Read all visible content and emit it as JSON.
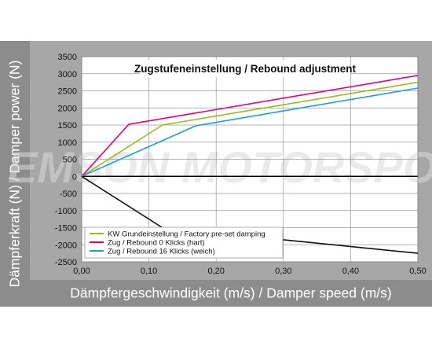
{
  "chart_data": {
    "type": "line",
    "title": "Zugstufeneinstellung / Rebound adjustment",
    "xlabel": "Dämpfergeschwindigkeit (m/s) / Damper speed (m/s)",
    "ylabel": "Dämpferkraft (N) / Damper power (N)",
    "xlim": [
      0,
      0.5
    ],
    "ylim": [
      -2500,
      3500
    ],
    "x_ticks": [
      "0,00",
      "0,10",
      "0,20",
      "0,30",
      "0,40",
      "0,50"
    ],
    "y_ticks": [
      "3500",
      "3000",
      "2500",
      "2000",
      "1500",
      "1000",
      "500",
      "0",
      "-500",
      "-1000",
      "-1500",
      "-2000",
      "-2500"
    ],
    "grid": true,
    "legend_position": "bottom-left",
    "watermark": "EMSON MOTORSPORT",
    "series": [
      {
        "name": "KW Grundeinstellung / Factory pre-set damping",
        "color": "#93c01f",
        "x": [
          0,
          0.12,
          0.5
        ],
        "y": [
          0,
          1500,
          2750
        ]
      },
      {
        "name": "Zug / Rebound 0 Klicks (hart)",
        "color": "#e5007e",
        "x": [
          0,
          0.07,
          0.5
        ],
        "y": [
          0,
          1520,
          2950
        ]
      },
      {
        "name": "Zug / Rebound 16 Klicks (weich)",
        "color": "#1e9fd9",
        "x": [
          0,
          0.17,
          0.5
        ],
        "y": [
          0,
          1480,
          2580
        ]
      },
      {
        "name": "",
        "color": "#111111",
        "x": [
          0,
          0.12,
          0.5
        ],
        "y": [
          0,
          -1500,
          -2250
        ]
      }
    ]
  }
}
